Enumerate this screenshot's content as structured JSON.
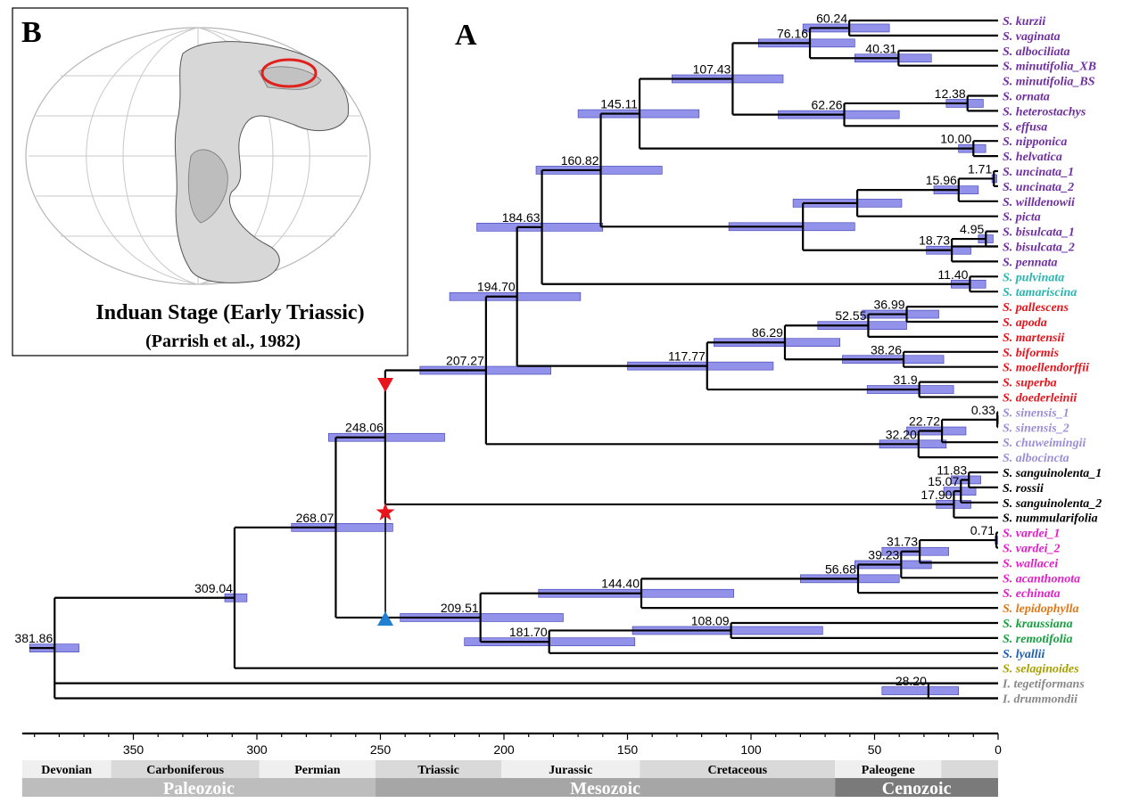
{
  "panels": {
    "map_letter": "B",
    "tree_letter": "A"
  },
  "inset": {
    "title": "Induan Stage (Early Triassic)",
    "subtitle": "(Parrish et al., 1982)",
    "highlight_color": "#e0201c"
  },
  "colors": {
    "purple": "#7030a0",
    "teal": "#2ab5b0",
    "red": "#e8141c",
    "lavender": "#9b8fd8",
    "black": "#000000",
    "magenta": "#e020c8",
    "orange": "#e07818",
    "green": "#18a040",
    "blue": "#1f5fb0",
    "olive": "#a8a000",
    "gray": "#888888",
    "hpd_bar": "#7f7fe8",
    "triangle_down": "#e8141c",
    "star": "#e8141c",
    "triangle_up": "#1f7fd0"
  },
  "taxa": [
    {
      "name": "S. kurzii",
      "color": "purple"
    },
    {
      "name": "S. vaginata",
      "color": "purple"
    },
    {
      "name": "S. albociliata",
      "color": "purple"
    },
    {
      "name": "S. minutifolia_XB",
      "color": "purple"
    },
    {
      "name": "S. minutifolia_BS",
      "color": "purple"
    },
    {
      "name": "S. ornata",
      "color": "purple"
    },
    {
      "name": "S. heterostachys",
      "color": "purple"
    },
    {
      "name": "S. effusa",
      "color": "purple"
    },
    {
      "name": "S. nipponica",
      "color": "purple"
    },
    {
      "name": "S. helvatica",
      "color": "purple"
    },
    {
      "name": "S. uncinata_1",
      "color": "purple"
    },
    {
      "name": "S. uncinata_2",
      "color": "purple"
    },
    {
      "name": "S. willdenowii",
      "color": "purple"
    },
    {
      "name": "S. picta",
      "color": "purple"
    },
    {
      "name": "S. bisulcata_1",
      "color": "purple"
    },
    {
      "name": "S. bisulcata_2",
      "color": "purple"
    },
    {
      "name": "S. pennata",
      "color": "purple"
    },
    {
      "name": "S. pulvinata",
      "color": "teal"
    },
    {
      "name": "S. tamariscina",
      "color": "teal"
    },
    {
      "name": "S. pallescens",
      "color": "red"
    },
    {
      "name": "S. apoda",
      "color": "red"
    },
    {
      "name": "S. martensii",
      "color": "red"
    },
    {
      "name": "S. biformis",
      "color": "red"
    },
    {
      "name": "S. moellendorffii",
      "color": "red"
    },
    {
      "name": "S. superba",
      "color": "red"
    },
    {
      "name": "S. doederleinii",
      "color": "red"
    },
    {
      "name": "S. sinensis_1",
      "color": "lavender"
    },
    {
      "name": "S. sinensis_2",
      "color": "lavender"
    },
    {
      "name": "S. chuweimingii",
      "color": "lavender"
    },
    {
      "name": "S. albocincta",
      "color": "lavender"
    },
    {
      "name": "S. sanguinolenta_1",
      "color": "black"
    },
    {
      "name": "S. rossii",
      "color": "black"
    },
    {
      "name": "S. sanguinolenta_2",
      "color": "black"
    },
    {
      "name": "S. nummularifolia",
      "color": "black"
    },
    {
      "name": "S. vardei_1",
      "color": "magenta"
    },
    {
      "name": "S. vardei_2",
      "color": "magenta"
    },
    {
      "name": "S. wallacei",
      "color": "magenta"
    },
    {
      "name": "S. acanthonota",
      "color": "magenta"
    },
    {
      "name": "S. echinata",
      "color": "magenta"
    },
    {
      "name": "S. lepidophylla",
      "color": "orange"
    },
    {
      "name": "S. kraussiana",
      "color": "green"
    },
    {
      "name": "S. remotifolia",
      "color": "green"
    },
    {
      "name": "S. lyallii",
      "color": "blue"
    },
    {
      "name": "S. selaginoides",
      "color": "olive"
    },
    {
      "name": "I. tegetiformans",
      "color": "gray"
    },
    {
      "name": "I. drummondii",
      "color": "gray"
    }
  ],
  "nodes": [
    {
      "age": 381.86,
      "label": "381.86",
      "hpd": [
        392,
        372
      ],
      "children": [
        {
          "n": 1
        },
        {
          "t": 44
        },
        {
          "t": 45
        }
      ]
    },
    {
      "age": 309.04,
      "label": "309.04",
      "hpd": [
        313,
        304
      ],
      "children": [
        {
          "n": 2
        },
        {
          "t": 43
        }
      ]
    },
    {
      "age": 268.07,
      "label": "268.07",
      "hpd": [
        286,
        245
      ],
      "children": [
        {
          "n": 3
        },
        {
          "n": 34
        }
      ]
    },
    {
      "age": 248.06,
      "label": "248.06",
      "hpd": [
        271,
        224
      ],
      "children": [
        {
          "n": 4
        },
        {
          "n": 30
        }
      ]
    },
    {
      "age": 207.27,
      "label": "207.27",
      "hpd": [
        234,
        181
      ],
      "children": [
        {
          "n": 5
        },
        {
          "n": 27
        }
      ]
    },
    {
      "age": 194.7,
      "label": "194.70",
      "hpd": [
        222,
        169
      ],
      "children": [
        {
          "n": 6
        },
        {
          "n": 21
        }
      ]
    },
    {
      "age": 184.63,
      "label": "184.63",
      "hpd": [
        211,
        160
      ],
      "children": [
        {
          "n": 7
        },
        {
          "n": 20
        }
      ]
    },
    {
      "age": 160.82,
      "label": "160.82",
      "hpd": [
        187,
        136
      ],
      "children": [
        {
          "n": 8
        },
        {
          "n": 15
        }
      ]
    },
    {
      "age": 145.11,
      "label": "145.11",
      "hpd": [
        170,
        121
      ],
      "children": [
        {
          "n": 9
        },
        {
          "n": 14
        }
      ]
    },
    {
      "age": 107.43,
      "label": "107.43",
      "hpd": [
        132,
        87
      ],
      "children": [
        {
          "n": 10
        },
        {
          "n": 13
        }
      ]
    },
    {
      "age": 76.16,
      "label": "76.16",
      "hpd": [
        97,
        58
      ],
      "children": [
        {
          "n": 11
        },
        {
          "n": 12
        }
      ]
    },
    {
      "age": 60.24,
      "label": "60.24",
      "hpd": [
        79,
        44
      ],
      "children": [
        {
          "t": 0
        },
        {
          "t": 1
        }
      ]
    },
    {
      "age": 40.31,
      "label": "40.31",
      "hpd": [
        58,
        27
      ],
      "children": [
        {
          "t": 2
        },
        {
          "t": 3
        }
      ]
    },
    {
      "age": 62.26,
      "label": "62.26",
      "hpd": [
        89,
        40
      ],
      "children": [
        {
          "n": 33
        },
        {
          "t": 7
        }
      ]
    },
    {
      "age": 10.0,
      "label": "10.00",
      "hpd": [
        16,
        5
      ],
      "children": [
        {
          "t": 8
        },
        {
          "t": 9
        }
      ]
    },
    {
      "age": 79.0,
      "label": "",
      "hpd": [
        109,
        58
      ],
      "children": [
        {
          "n": 16
        },
        {
          "n": 18
        }
      ]
    },
    {
      "age": 57.0,
      "label": "",
      "hpd": [
        83,
        39
      ],
      "children": [
        {
          "n": 17
        },
        {
          "t": 13
        }
      ]
    },
    {
      "age": 15.96,
      "label": "15.96",
      "hpd": [
        26,
        8
      ],
      "children": [
        {
          "n": 19
        },
        {
          "t": 12
        }
      ]
    },
    {
      "age": 18.73,
      "label": "18.73",
      "hpd": [
        29,
        11
      ],
      "children": [
        {
          "n": 32
        },
        {
          "t": 15
        },
        {
          "t": 16
        }
      ]
    },
    {
      "age": 1.71,
      "label": "1.71",
      "hpd": [
        2.5,
        0.5
      ],
      "children": [
        {
          "t": 10
        },
        {
          "t": 11
        }
      ]
    },
    {
      "age": 11.4,
      "label": "11.40",
      "hpd": [
        19,
        5
      ],
      "children": [
        {
          "t": 17
        },
        {
          "t": 18
        }
      ]
    },
    {
      "age": 117.77,
      "label": "117.77",
      "hpd": [
        150,
        91
      ],
      "children": [
        {
          "n": 22
        },
        {
          "n": 25
        }
      ]
    },
    {
      "age": 86.29,
      "label": "86.29",
      "hpd": [
        115,
        64
      ],
      "children": [
        {
          "n": 23
        },
        {
          "n": 24
        }
      ]
    },
    {
      "age": 52.55,
      "label": "52.55",
      "hpd": [
        73,
        37
      ],
      "children": [
        {
          "n": 26
        },
        {
          "t": 21
        }
      ]
    },
    {
      "age": 38.26,
      "label": "38.26",
      "hpd": [
        63,
        22
      ],
      "children": [
        {
          "t": 22
        },
        {
          "t": 23
        }
      ]
    },
    {
      "age": 31.9,
      "label": "31.9",
      "hpd": [
        53,
        18
      ],
      "children": [
        {
          "t": 24
        },
        {
          "t": 25
        }
      ]
    },
    {
      "age": 36.99,
      "label": "36.99",
      "hpd": [
        55,
        24
      ],
      "children": [
        {
          "t": 19
        },
        {
          "t": 20
        }
      ]
    },
    {
      "age": 32.2,
      "label": "32.20",
      "hpd": [
        48,
        21
      ],
      "children": [
        {
          "n": 28
        },
        {
          "t": 29
        }
      ]
    },
    {
      "age": 22.72,
      "label": "22.72",
      "hpd": [
        37,
        13
      ],
      "children": [
        {
          "n": 29
        },
        {
          "t": 28
        }
      ]
    },
    {
      "age": 0.33,
      "label": "0.33",
      "hpd": [
        0.6,
        0.1
      ],
      "children": [
        {
          "t": 26
        },
        {
          "t": 27
        }
      ]
    },
    {
      "age": 17.9,
      "label": "17.90",
      "hpd": [
        25,
        11
      ],
      "children": [
        {
          "n": 31
        },
        {
          "t": 33
        }
      ]
    },
    {
      "age": 15.07,
      "label": "15.07",
      "hpd": [
        22,
        9
      ],
      "children": [
        {
          "n": 35
        },
        {
          "t": 32
        }
      ]
    },
    {
      "age": 4.95,
      "label": "4.95",
      "hpd": [
        8,
        2
      ],
      "children": [
        {
          "t": 14
        },
        {
          "t": 15
        }
      ]
    },
    {
      "age": 12.38,
      "label": "12.38",
      "hpd": [
        21,
        6
      ],
      "children": [
        {
          "t": 5
        },
        {
          "t": 6
        }
      ]
    },
    {
      "age": 209.51,
      "label": "209.51",
      "hpd": [
        242,
        176
      ],
      "children": [
        {
          "n": 36
        },
        {
          "n": 40
        }
      ]
    },
    {
      "age": 11.83,
      "label": "11.83",
      "hpd": [
        19,
        7
      ],
      "children": [
        {
          "t": 30
        },
        {
          "t": 31
        }
      ]
    },
    {
      "age": 144.4,
      "label": "144.40",
      "hpd": [
        186,
        107
      ],
      "children": [
        {
          "n": 37
        },
        {
          "t": 39
        }
      ]
    },
    {
      "age": 56.68,
      "label": "56.68",
      "hpd": [
        80,
        40
      ],
      "children": [
        {
          "n": 38
        },
        {
          "t": 38
        }
      ]
    },
    {
      "age": 39.23,
      "label": "39.23",
      "hpd": [
        58,
        27
      ],
      "children": [
        {
          "n": 39
        },
        {
          "t": 37
        }
      ]
    },
    {
      "age": 31.73,
      "label": "31.73",
      "hpd": [
        47,
        20
      ],
      "children": [
        {
          "n": 41
        },
        {
          "t": 36
        }
      ]
    },
    {
      "age": 181.7,
      "label": "181.70",
      "hpd": [
        216,
        147
      ],
      "children": [
        {
          "n": 42
        },
        {
          "t": 42
        }
      ]
    },
    {
      "age": 0.71,
      "label": "0.71",
      "hpd": [
        1.2,
        0.2
      ],
      "children": [
        {
          "t": 34
        },
        {
          "t": 35
        }
      ]
    },
    {
      "age": 108.09,
      "label": "108.09",
      "hpd": [
        148,
        71
      ],
      "children": [
        {
          "t": 40
        },
        {
          "t": 41
        }
      ]
    },
    {
      "age": 28.2,
      "label": "28.20",
      "hpd": [
        47,
        16
      ],
      "children": [
        {
          "t": 44
        },
        {
          "t": 45
        }
      ]
    }
  ],
  "markers": {
    "age": 248,
    "triangle_down_label": "",
    "star_label": "",
    "triangle_up_label": ""
  },
  "axis": {
    "min": 0,
    "max": 395,
    "reversed": true,
    "ticks": [
      350,
      300,
      250,
      200,
      150,
      100,
      50,
      0
    ],
    "unit": ""
  },
  "periods": [
    {
      "name": "Devonian",
      "start": 395,
      "end": 359
    },
    {
      "name": "Carboniferous",
      "start": 359,
      "end": 299
    },
    {
      "name": "Permian",
      "start": 299,
      "end": 252
    },
    {
      "name": "Triassic",
      "start": 252,
      "end": 201
    },
    {
      "name": "Jurassic",
      "start": 201,
      "end": 145
    },
    {
      "name": "Cretaceous",
      "start": 145,
      "end": 66
    },
    {
      "name": "Paleogene",
      "start": 66,
      "end": 23
    },
    {
      "name": "",
      "start": 23,
      "end": 0
    }
  ],
  "eras": [
    {
      "name": "Paleozoic",
      "start": 395,
      "end": 252
    },
    {
      "name": "Mesozoic",
      "start": 252,
      "end": 66
    },
    {
      "name": "Cenozoic",
      "start": 66,
      "end": 0
    }
  ]
}
